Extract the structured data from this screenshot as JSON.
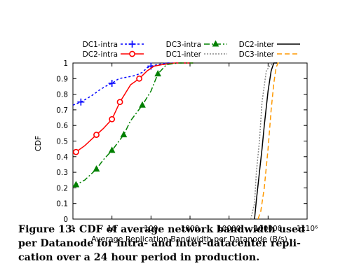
{
  "chart_data": {
    "type": "line",
    "xlabel": "Average Replication Bandwidth per Datanode (B/s)",
    "ylabel": "CDF",
    "x_scale": "log",
    "xlim": [
      1,
      1000000
    ],
    "ylim": [
      0,
      1
    ],
    "x_ticks": [
      {
        "value": 1,
        "label": "1"
      },
      {
        "value": 10,
        "label": "10"
      },
      {
        "value": 100,
        "label": "100"
      },
      {
        "value": 1000,
        "label": "1000"
      },
      {
        "value": 10000,
        "label": "10000"
      },
      {
        "value": 100000,
        "label": "100000"
      },
      {
        "value": 1000000,
        "label": "1x10⁶"
      }
    ],
    "y_ticks": [
      {
        "value": 0,
        "label": "0"
      },
      {
        "value": 0.1,
        "label": "0.1"
      },
      {
        "value": 0.2,
        "label": "0.2"
      },
      {
        "value": 0.3,
        "label": "0.3"
      },
      {
        "value": 0.4,
        "label": "0.4"
      },
      {
        "value": 0.5,
        "label": "0.5"
      },
      {
        "value": 0.6,
        "label": "0.6"
      },
      {
        "value": 0.7,
        "label": "0.7"
      },
      {
        "value": 0.8,
        "label": "0.8"
      },
      {
        "value": 0.9,
        "label": "0.9"
      },
      {
        "value": 1,
        "label": "1"
      }
    ],
    "grid": false,
    "legend_position": "top",
    "series": [
      {
        "name": "DC1-intra",
        "color": "#0000ff",
        "dash": "3,3",
        "marker": "plus",
        "x": [
          1,
          1.6,
          3,
          5,
          8,
          10,
          15,
          25,
          40,
          60,
          80,
          100,
          150,
          250,
          600,
          1200
        ],
        "y": [
          0.73,
          0.75,
          0.79,
          0.83,
          0.86,
          0.87,
          0.9,
          0.91,
          0.92,
          0.94,
          0.97,
          0.98,
          0.99,
          1.0,
          1.0,
          1.0
        ],
        "marker_x": [
          1.6,
          10,
          100
        ],
        "marker_y": [
          0.75,
          0.87,
          0.98
        ]
      },
      {
        "name": "DC2-intra",
        "color": "#ff0000",
        "dash": "",
        "marker": "circle",
        "x": [
          1,
          1.2,
          2,
          4,
          6,
          10,
          16,
          30,
          50,
          80,
          120,
          200,
          400,
          1200
        ],
        "y": [
          0.42,
          0.43,
          0.47,
          0.54,
          0.58,
          0.64,
          0.75,
          0.86,
          0.9,
          0.95,
          0.98,
          0.99,
          1.0,
          1.0
        ],
        "marker_x": [
          1.2,
          4,
          10,
          16,
          50
        ],
        "marker_y": [
          0.43,
          0.54,
          0.64,
          0.75,
          0.9
        ]
      },
      {
        "name": "DC3-intra",
        "color": "#008000",
        "dash": "8,3,2,3",
        "marker": "triangle",
        "x": [
          1,
          1.2,
          2,
          4,
          6,
          10,
          20,
          30,
          60,
          100,
          150,
          250,
          500,
          1200
        ],
        "y": [
          0.21,
          0.22,
          0.25,
          0.32,
          0.38,
          0.44,
          0.54,
          0.63,
          0.73,
          0.82,
          0.93,
          0.99,
          1.0,
          1.0
        ],
        "marker_x": [
          1.2,
          4,
          10,
          20,
          60,
          150
        ],
        "marker_y": [
          0.22,
          0.32,
          0.44,
          0.54,
          0.73,
          0.93
        ]
      },
      {
        "name": "DC1-inter",
        "color": "#888888",
        "dash": "2,2",
        "marker": "",
        "x": [
          36000,
          40000,
          45000,
          50000,
          60000,
          70000,
          90000,
          110000,
          140000,
          170000
        ],
        "y": [
          0.0,
          0.05,
          0.1,
          0.3,
          0.5,
          0.75,
          0.95,
          0.98,
          1.0,
          1.0
        ],
        "marker_x": [],
        "marker_y": []
      },
      {
        "name": "DC2-inter",
        "color": "#000000",
        "dash": "",
        "marker": "",
        "x": [
          45000,
          50000,
          60000,
          70000,
          80000,
          100000,
          120000,
          140000,
          170000
        ],
        "y": [
          0.0,
          0.12,
          0.3,
          0.45,
          0.6,
          0.82,
          0.95,
          1.0,
          1.0
        ],
        "marker_x": [],
        "marker_y": []
      },
      {
        "name": "DC3-inter",
        "color": "#ff9900",
        "dash": "7,4",
        "marker": "",
        "x": [
          55000,
          65000,
          80000,
          100000,
          120000,
          140000,
          160000,
          180000,
          200000
        ],
        "y": [
          0.0,
          0.05,
          0.2,
          0.45,
          0.7,
          0.87,
          0.97,
          1.0,
          1.0
        ],
        "marker_x": [],
        "marker_y": []
      }
    ]
  },
  "caption": {
    "line1": "Figure 13: CDF of average network bandwidth used",
    "line2": "per Datanode for intra- and inter-datacenter repli-",
    "line3": "cation over a 24 hour period in production."
  }
}
